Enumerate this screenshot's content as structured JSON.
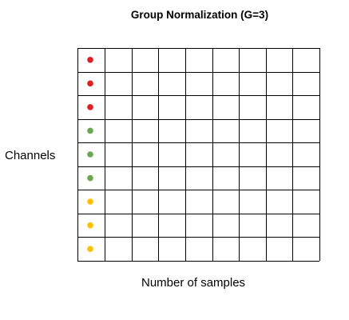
{
  "title": "Group Normalization (G=3)",
  "y_axis_label": "Channels",
  "x_axis_label": "Number of samples",
  "grid": {
    "rows": 9,
    "columns": 9
  },
  "groups": [
    {
      "color": "#e02020",
      "channels": 3
    },
    {
      "color": "#6aa84f",
      "channels": 3
    },
    {
      "color": "#ffc000",
      "channels": 3
    }
  ]
}
